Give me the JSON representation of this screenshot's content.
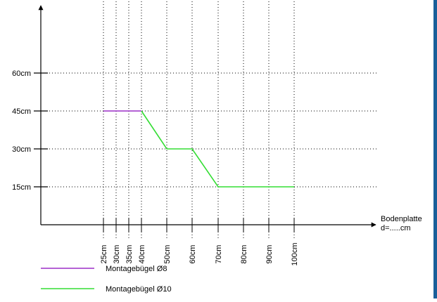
{
  "chart_data": {
    "type": "line",
    "x": [
      25,
      30,
      35,
      40,
      50,
      60,
      70,
      80,
      90,
      100
    ],
    "x_tick_labels": [
      "25cm",
      "30cm",
      "35cm",
      "40cm",
      "50cm",
      "60cm",
      "70cm",
      "80cm",
      "90cm",
      "100cm"
    ],
    "y_ticks": [
      15,
      30,
      45,
      60
    ],
    "y_tick_labels": [
      "15cm",
      "30cm",
      "45cm",
      "60cm"
    ],
    "xlabel_line1": "Bodenplatte",
    "xlabel_line2": "d=.....cm",
    "ylim": [
      0,
      85
    ],
    "grid": "dotted",
    "series": [
      {
        "name": "Montagebügel Ø8",
        "color": "#9b2fc7",
        "points": [
          [
            25,
            45
          ],
          [
            40,
            45
          ]
        ]
      },
      {
        "name": "Montagebügel Ø10",
        "color": "#33dd33",
        "points": [
          [
            40,
            45
          ],
          [
            50,
            30
          ],
          [
            60,
            30
          ],
          [
            70,
            15
          ],
          [
            100,
            15
          ]
        ]
      }
    ],
    "legend_position": "bottom-left"
  },
  "frame": {
    "border_color": "#1a5f9a"
  }
}
